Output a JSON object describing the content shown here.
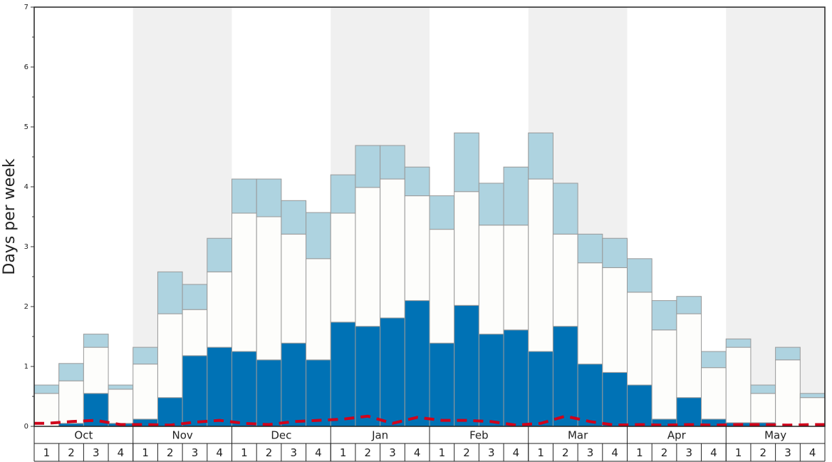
{
  "chart_data": {
    "type": "stacked-bar",
    "y_label": "Days per week",
    "months": [
      "Oct",
      "Nov",
      "Dec",
      "Jan",
      "Feb",
      "Mar",
      "Apr",
      "May"
    ],
    "categories": [
      "1",
      "2",
      "3",
      "4",
      "1",
      "2",
      "3",
      "4",
      "1",
      "2",
      "3",
      "4",
      "1",
      "2",
      "3",
      "4",
      "1",
      "2",
      "3",
      "4",
      "1",
      "2",
      "3",
      "4",
      "1",
      "2",
      "3",
      "4",
      "1",
      "2",
      "3",
      "4"
    ],
    "series": [
      {
        "color": "#0072b5",
        "values": [
          0,
          0.05,
          0.55,
          0.05,
          0.12,
          0.48,
          1.18,
          1.32,
          1.25,
          1.11,
          1.39,
          1.11,
          1.74,
          1.67,
          1.81,
          2.1,
          1.39,
          2.02,
          1.54,
          1.61,
          1.25,
          1.67,
          1.04,
          0.9,
          0.69,
          0.12,
          0.48,
          0.12,
          0.06,
          0.06,
          0,
          0
        ]
      },
      {
        "color": "#fdfdfb",
        "values": [
          0.55,
          0.71,
          0.77,
          0.57,
          0.92,
          1.4,
          0.77,
          1.26,
          2.31,
          2.39,
          1.82,
          1.69,
          1.82,
          2.32,
          2.32,
          1.75,
          1.9,
          1.9,
          1.82,
          1.75,
          2.88,
          1.54,
          1.69,
          1.75,
          1.55,
          1.49,
          1.4,
          0.86,
          1.26,
          0.49,
          1.11,
          0.48
        ]
      },
      {
        "color": "#aed3e0",
        "values": [
          0.14,
          0.29,
          0.22,
          0.07,
          0.28,
          0.7,
          0.42,
          0.56,
          0.57,
          0.63,
          0.56,
          0.77,
          0.64,
          0.7,
          0.56,
          0.48,
          0.56,
          0.98,
          0.7,
          0.97,
          0.77,
          0.85,
          0.48,
          0.49,
          0.56,
          0.49,
          0.29,
          0.27,
          0.14,
          0.14,
          0.21,
          0.07
        ]
      }
    ],
    "line": {
      "color": "#d0021b",
      "values": [
        0.05,
        0.08,
        0.1,
        0.03,
        0.03,
        0.02,
        0.07,
        0.1,
        0.05,
        0.03,
        0.08,
        0.1,
        0.12,
        0.17,
        0.05,
        0.15,
        0.1,
        0.1,
        0.08,
        0.02,
        0.05,
        0.17,
        0.08,
        0.02,
        0.03,
        0.02,
        0.03,
        0.02,
        0.03,
        0.03,
        0.02,
        0.03
      ]
    },
    "ylim": [
      0,
      7
    ],
    "yticks": [
      0,
      1,
      2,
      3,
      4,
      5,
      6,
      7
    ],
    "yticks_minor": [
      0.5,
      1.5,
      2.5,
      3.5,
      4.5,
      5.5,
      6.5
    ]
  }
}
